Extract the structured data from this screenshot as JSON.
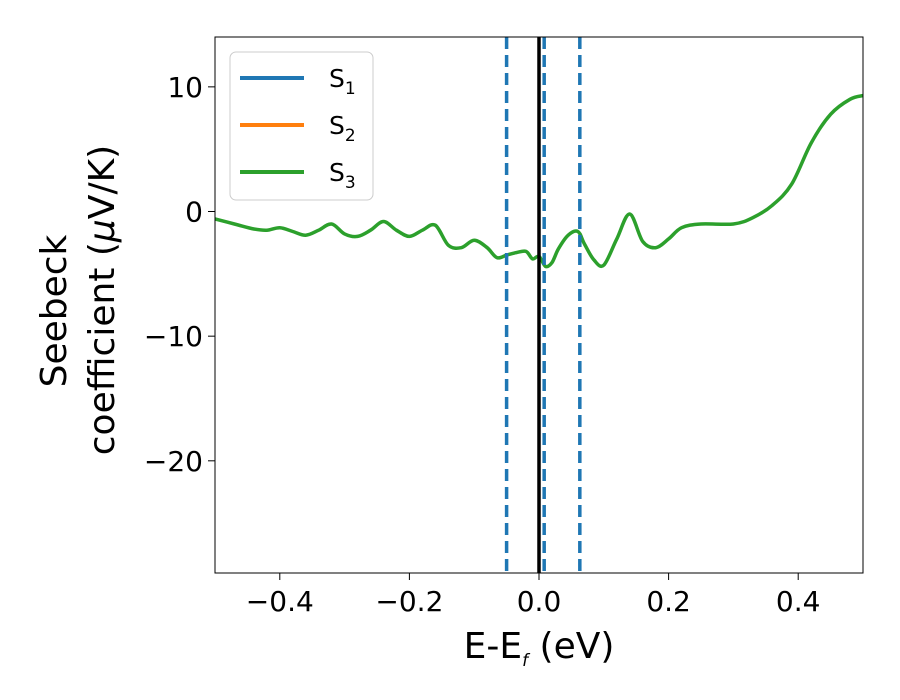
{
  "chart_data": {
    "type": "line",
    "xlabel": {
      "main": "E-E",
      "sub": "f",
      "unit": " (eV)"
    },
    "ylabel": {
      "line1": "Seebeck",
      "line2_prefix": "coefficient  (",
      "mu": "μ",
      "line2_suffix": "V/K)"
    },
    "xlim": [
      -0.5,
      0.5
    ],
    "ylim": [
      -29,
      14
    ],
    "xticks": [
      -0.4,
      -0.2,
      0.0,
      0.2,
      0.4
    ],
    "xtick_labels": [
      "−0.4",
      "−0.2",
      "0.0",
      "0.2",
      "0.4"
    ],
    "yticks": [
      10,
      0,
      -10,
      -20
    ],
    "ytick_labels": [
      "10",
      "0",
      "−10",
      "−20"
    ],
    "grid": false,
    "legend_position": "upper-left",
    "vertical_lines": [
      {
        "x": 0.0,
        "style": "solid",
        "color": "#000000"
      },
      {
        "x": -0.05,
        "style": "dashed",
        "color": "#1f77b4"
      },
      {
        "x": 0.008,
        "style": "dashed",
        "color": "#1f77b4"
      },
      {
        "x": 0.063,
        "style": "dashed",
        "color": "#1f77b4"
      }
    ],
    "series": [
      {
        "name": "S",
        "sub": "1",
        "color": "#1f77b4"
      },
      {
        "name": "S",
        "sub": "2",
        "color": "#ff7f0e"
      },
      {
        "name": "S",
        "sub": "3",
        "color": "#2ca02c",
        "x": [
          -0.5,
          -0.47,
          -0.44,
          -0.42,
          -0.4,
          -0.38,
          -0.36,
          -0.34,
          -0.32,
          -0.3,
          -0.28,
          -0.26,
          -0.24,
          -0.22,
          -0.2,
          -0.18,
          -0.16,
          -0.14,
          -0.12,
          -0.1,
          -0.08,
          -0.065,
          -0.05,
          -0.035,
          -0.02,
          -0.01,
          0.0,
          0.01,
          0.02,
          0.03,
          0.045,
          0.06,
          0.07,
          0.085,
          0.1,
          0.12,
          0.14,
          0.16,
          0.18,
          0.2,
          0.22,
          0.25,
          0.3,
          0.33,
          0.36,
          0.39,
          0.42,
          0.45,
          0.48,
          0.5
        ],
        "y": [
          -0.6,
          -1.0,
          -1.4,
          -1.5,
          -1.3,
          -1.6,
          -1.9,
          -1.5,
          -1.0,
          -1.8,
          -2.0,
          -1.5,
          -0.8,
          -1.5,
          -2.0,
          -1.5,
          -1.1,
          -2.7,
          -2.9,
          -2.3,
          -2.9,
          -3.7,
          -3.5,
          -3.3,
          -3.2,
          -3.8,
          -3.6,
          -4.4,
          -4.1,
          -3.0,
          -1.9,
          -1.6,
          -2.6,
          -3.9,
          -4.3,
          -2.2,
          -0.2,
          -2.4,
          -2.9,
          -2.2,
          -1.3,
          -1.0,
          -1.0,
          -0.5,
          0.5,
          2.2,
          5.5,
          7.8,
          9.0,
          9.3
        ]
      }
    ]
  }
}
